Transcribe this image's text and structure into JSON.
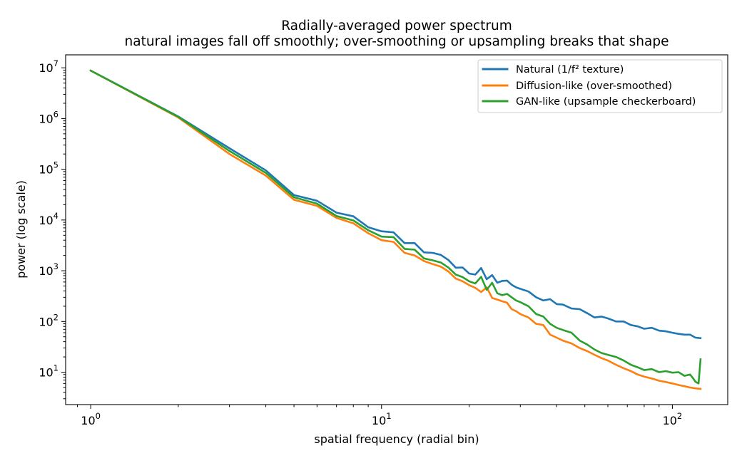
{
  "chart_data": {
    "type": "line",
    "title": "Radially-averaged power spectrum",
    "subtitle": "natural images fall off smoothly; over-smoothing or upsampling breaks that shape",
    "xlabel": "spatial frequency (radial bin)",
    "ylabel": "power (log scale)",
    "xscale": "log",
    "yscale": "log",
    "xlim": [
      0.82,
      155
    ],
    "ylim": [
      2.3,
      18000000
    ],
    "x_ticks": [
      {
        "value": 1,
        "base": "10",
        "exp": "0"
      },
      {
        "value": 10,
        "base": "10",
        "exp": "1"
      },
      {
        "value": 100,
        "base": "10",
        "exp": "2"
      }
    ],
    "y_ticks": [
      {
        "value": 10,
        "base": "10",
        "exp": "1"
      },
      {
        "value": 100,
        "base": "10",
        "exp": "2"
      },
      {
        "value": 1000,
        "base": "10",
        "exp": "3"
      },
      {
        "value": 10000,
        "base": "10",
        "exp": "4"
      },
      {
        "value": 100000,
        "base": "10",
        "exp": "5"
      },
      {
        "value": 1000000,
        "base": "10",
        "exp": "6"
      },
      {
        "value": 10000000,
        "base": "10",
        "exp": "7"
      }
    ],
    "legend_position": "top-right",
    "grid": false,
    "series": [
      {
        "name": "Natural (1/f² texture)",
        "color": "#1f77b4",
        "x": [
          1,
          2,
          3,
          4,
          5,
          6,
          7,
          8,
          9,
          10,
          11,
          12,
          13,
          14,
          15,
          16,
          17,
          18,
          19,
          20,
          21,
          22,
          23,
          24,
          25,
          26,
          27,
          28,
          29,
          30,
          32,
          34,
          36,
          38,
          40,
          42,
          45,
          48,
          51,
          54,
          57,
          60,
          64,
          68,
          72,
          76,
          80,
          85,
          90,
          95,
          100,
          105,
          110,
          115,
          120,
          125
        ],
        "y": [
          8800000,
          1100000,
          260000,
          95000,
          31000,
          24000,
          14000,
          11800,
          7200,
          6000,
          5700,
          3500,
          3500,
          2300,
          2250,
          2050,
          1620,
          1150,
          1160,
          880,
          840,
          1130,
          680,
          820,
          580,
          630,
          640,
          530,
          470,
          440,
          390,
          300,
          260,
          275,
          220,
          215,
          180,
          175,
          145,
          120,
          125,
          115,
          100,
          100,
          85,
          80,
          72,
          75,
          66,
          64,
          60,
          57,
          55,
          55,
          48,
          47
        ]
      },
      {
        "name": "Diffusion-like (over-smoothed)",
        "color": "#ff7f0e",
        "x": [
          1,
          2,
          3,
          4,
          5,
          6,
          7,
          8,
          9,
          10,
          11,
          12,
          13,
          14,
          15,
          16,
          17,
          18,
          19,
          20,
          21,
          22,
          23,
          24,
          25,
          26,
          27,
          28,
          29,
          30,
          32,
          34,
          36,
          38,
          40,
          42,
          45,
          48,
          51,
          54,
          57,
          60,
          64,
          68,
          72,
          76,
          80,
          85,
          90,
          95,
          100,
          105,
          110,
          115,
          120,
          125
        ],
        "y": [
          8800000,
          1050000,
          200000,
          75000,
          25000,
          19000,
          11000,
          8600,
          5500,
          4000,
          3700,
          2250,
          2000,
          1550,
          1350,
          1200,
          960,
          700,
          620,
          520,
          460,
          380,
          470,
          290,
          270,
          250,
          235,
          175,
          160,
          140,
          120,
          90,
          85,
          55,
          48,
          42,
          37,
          30,
          26,
          22,
          19,
          17,
          14,
          12,
          10.5,
          9,
          8.2,
          7.5,
          6.8,
          6.4,
          6.0,
          5.6,
          5.3,
          5.0,
          4.8,
          4.7
        ]
      },
      {
        "name": "GAN-like (upsample checkerboard)",
        "color": "#2ca02c",
        "x": [
          1,
          2,
          3,
          4,
          5,
          6,
          7,
          8,
          9,
          10,
          11,
          12,
          13,
          14,
          15,
          16,
          17,
          18,
          19,
          20,
          21,
          22,
          23,
          24,
          25,
          26,
          27,
          28,
          29,
          30,
          32,
          34,
          36,
          38,
          40,
          42,
          45,
          48,
          51,
          54,
          57,
          60,
          64,
          68,
          72,
          76,
          80,
          85,
          90,
          95,
          100,
          105,
          110,
          115,
          118,
          120,
          123,
          125
        ],
        "y": [
          8800000,
          1080000,
          230000,
          85000,
          28000,
          21000,
          12000,
          9800,
          6300,
          4700,
          4600,
          2700,
          2600,
          1750,
          1600,
          1450,
          1150,
          840,
          750,
          620,
          560,
          760,
          420,
          580,
          360,
          330,
          350,
          300,
          260,
          240,
          200,
          140,
          125,
          90,
          75,
          68,
          60,
          42,
          35,
          28,
          24,
          22,
          20,
          17,
          14,
          12.5,
          11,
          11.5,
          10,
          10.5,
          9.8,
          10,
          8.5,
          9,
          7.5,
          6.5,
          6,
          18
        ]
      }
    ]
  }
}
